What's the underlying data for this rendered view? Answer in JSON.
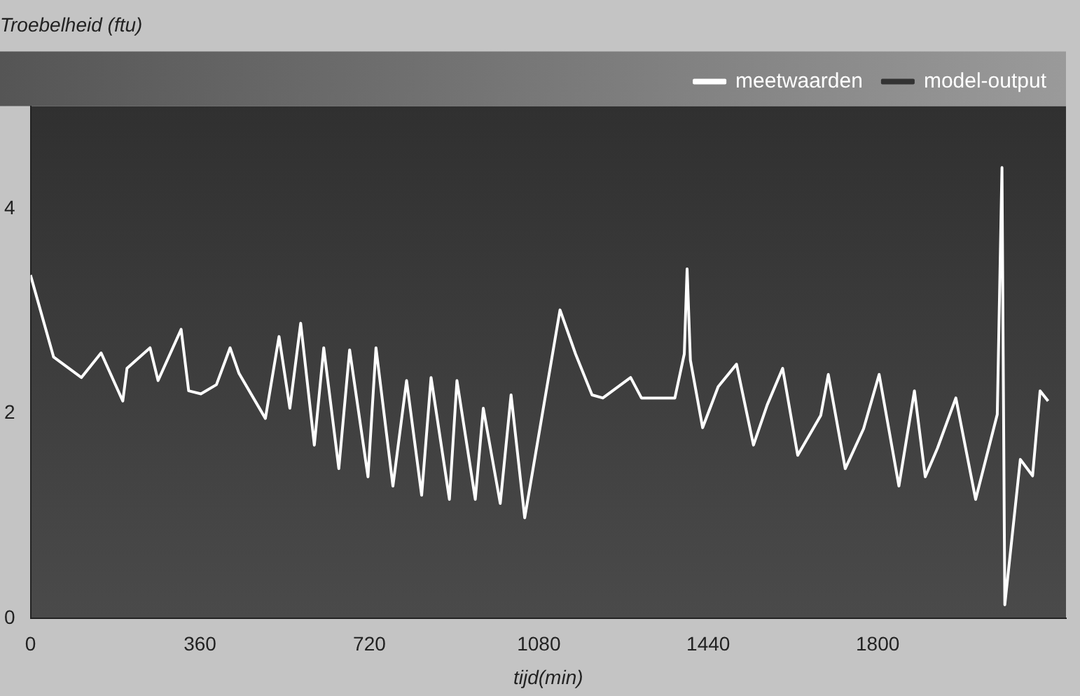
{
  "chart_data": {
    "type": "line",
    "ylabel": "Troebelheid (ftu)",
    "xlabel": "tijd(min)",
    "xlim": [
      0,
      2200
    ],
    "xticks": [
      0,
      360,
      720,
      1080,
      1440,
      1800
    ],
    "ylim": [
      0,
      5
    ],
    "yticks": [
      0,
      2,
      4
    ],
    "legend": "top right",
    "grid": false,
    "marker": "none",
    "line_style": "solid",
    "series": [
      {
        "name": "meetwaarden",
        "color": "#ffffff",
        "x": [
          0,
          49,
          108,
          150,
          196,
          205,
          254,
          271,
          320,
          336,
          362,
          395,
          424,
          443,
          499,
          528,
          551,
          574,
          603,
          623,
          655,
          678,
          717,
          734,
          770,
          799,
          831,
          851,
          890,
          906,
          945,
          962,
          998,
          1021,
          1050,
          1125,
          1158,
          1193,
          1216,
          1275,
          1298,
          1369,
          1389,
          1395,
          1402,
          1428,
          1461,
          1500,
          1536,
          1565,
          1598,
          1630,
          1679,
          1695,
          1731,
          1770,
          1803,
          1845,
          1878,
          1901,
          1927,
          1966,
          2008,
          2054,
          2064,
          2070,
          2103,
          2129,
          2145,
          2162
        ],
        "values": [
          3.35,
          2.55,
          2.35,
          2.59,
          2.12,
          2.44,
          2.64,
          2.32,
          2.82,
          2.22,
          2.19,
          2.28,
          2.64,
          2.39,
          1.95,
          2.75,
          2.05,
          2.88,
          1.69,
          2.64,
          1.46,
          2.62,
          1.38,
          2.64,
          1.29,
          2.32,
          1.2,
          2.35,
          1.16,
          2.32,
          1.16,
          2.05,
          1.12,
          2.18,
          0.98,
          3.01,
          2.58,
          2.18,
          2.15,
          2.35,
          2.15,
          2.15,
          2.58,
          3.41,
          2.52,
          1.86,
          2.26,
          2.48,
          1.69,
          2.08,
          2.44,
          1.59,
          1.98,
          2.38,
          1.46,
          1.85,
          2.38,
          1.29,
          2.22,
          1.38,
          1.66,
          2.15,
          1.16,
          1.99,
          4.4,
          0.13,
          1.55,
          1.39,
          2.22,
          2.12
        ]
      },
      {
        "name": "model-output",
        "color": "#333333"
      }
    ]
  }
}
